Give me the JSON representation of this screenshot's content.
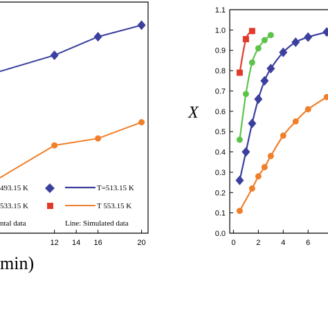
{
  "colors": {
    "T493": "#3b3f9e",
    "T513": "#3b3f9e",
    "T533": "#e23a2a",
    "T553": "#f07f2a",
    "green": "#5cc34a"
  },
  "chart_data": [
    {
      "type": "line",
      "panel": "left",
      "xlabel": "min)",
      "ylabel": "",
      "xlim": [
        7,
        20.6
      ],
      "ylim": [
        0,
        1
      ],
      "x_ticks": [
        "12",
        "14",
        "16",
        "20"
      ],
      "series": [
        {
          "name": "T=513.15 K",
          "marker": "diamond",
          "color": "#3b3f9e",
          "x": [
            12,
            16,
            20
          ],
          "y": [
            0.77,
            0.85,
            0.9
          ],
          "fit_x": [
            7,
            12,
            16,
            20
          ],
          "fit_y": [
            0.7,
            0.77,
            0.85,
            0.9
          ]
        },
        {
          "name": "T 553.15 K",
          "marker": "circle",
          "color": "#f07f2a",
          "x": [
            12,
            16,
            20
          ],
          "y": [
            0.38,
            0.41,
            0.48
          ],
          "fit_x": [
            7,
            12,
            16,
            20
          ],
          "fit_y": [
            0.24,
            0.38,
            0.41,
            0.48
          ]
        }
      ],
      "legend": {
        "entries": [
          {
            "label": "493.15 K",
            "marker": "diamond",
            "color": "#3b3f9e"
          },
          {
            "label": "T=513.15 K",
            "line": true,
            "color": "#3b3f9e"
          },
          {
            "label": "533.15 K",
            "marker": "square",
            "color": "#e23a2a"
          },
          {
            "label": "T 553.15 K",
            "line": true,
            "color": "#f07f2a"
          }
        ],
        "note_left": "ntal data",
        "note_right": "Line: Simulated data"
      }
    },
    {
      "type": "line",
      "panel": "right",
      "ylabel": "X",
      "xlim": [
        -0.3,
        7.6
      ],
      "ylim": [
        0,
        1.1
      ],
      "x_ticks": [
        "0",
        "2",
        "4",
        "6"
      ],
      "y_ticks": [
        "0.0",
        "0.1",
        "0.2",
        "0.3",
        "0.4",
        "0.5",
        "0.6",
        "0.7",
        "0.8",
        "0.9",
        "1.0",
        "1.1"
      ],
      "series": [
        {
          "marker": "square",
          "color": "#e23a2a",
          "x": [
            0.5,
            1.0,
            1.5
          ],
          "y": [
            0.79,
            0.955,
            0.995
          ]
        },
        {
          "marker": "circle",
          "color": "#5cc34a",
          "x": [
            0.5,
            1.0,
            1.5,
            2.0,
            2.5,
            3.0
          ],
          "y": [
            0.46,
            0.685,
            0.84,
            0.91,
            0.95,
            0.975
          ]
        },
        {
          "marker": "diamond",
          "color": "#3b3f9e",
          "x": [
            0.5,
            1.0,
            1.5,
            2.0,
            2.5,
            3.0,
            4.0,
            5.0,
            6.0,
            7.5
          ],
          "y": [
            0.26,
            0.4,
            0.54,
            0.66,
            0.75,
            0.81,
            0.89,
            0.94,
            0.965,
            0.99
          ]
        },
        {
          "marker": "circle",
          "color": "#f07f2a",
          "x": [
            0.5,
            1.5,
            2.0,
            2.5,
            3.0,
            4.0,
            5.0,
            6.0,
            7.5
          ],
          "y": [
            0.11,
            0.22,
            0.28,
            0.325,
            0.38,
            0.48,
            0.55,
            0.61,
            0.67
          ]
        }
      ]
    }
  ]
}
